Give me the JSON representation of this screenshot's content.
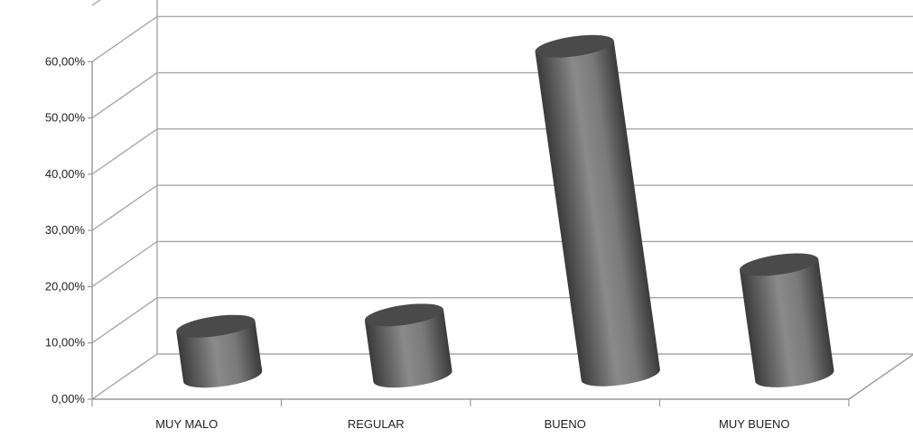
{
  "chart_data": {
    "type": "bar",
    "style": "3d-cylinder",
    "categories": [
      "MUY MALO",
      "REGULAR",
      "BUENO",
      "MUY BUENO"
    ],
    "values": [
      0.09,
      0.11,
      0.59,
      0.2
    ],
    "yticks": [
      "0,00%",
      "10,00%",
      "20,00%",
      "30,00%",
      "40,00%",
      "50,00%",
      "60,00%"
    ],
    "ylim": [
      0,
      0.7
    ],
    "grid": true,
    "legend": "none",
    "title": "",
    "xlabel": "",
    "ylabel": "",
    "colors": {
      "bar_dark": "#3a3a3a",
      "bar_mid": "#6e6e6e",
      "bar_light": "#9a9a9a",
      "bar_top": "#4a4a4a",
      "grid": "#a8a8a8",
      "axis": "#9a9a9a"
    }
  }
}
